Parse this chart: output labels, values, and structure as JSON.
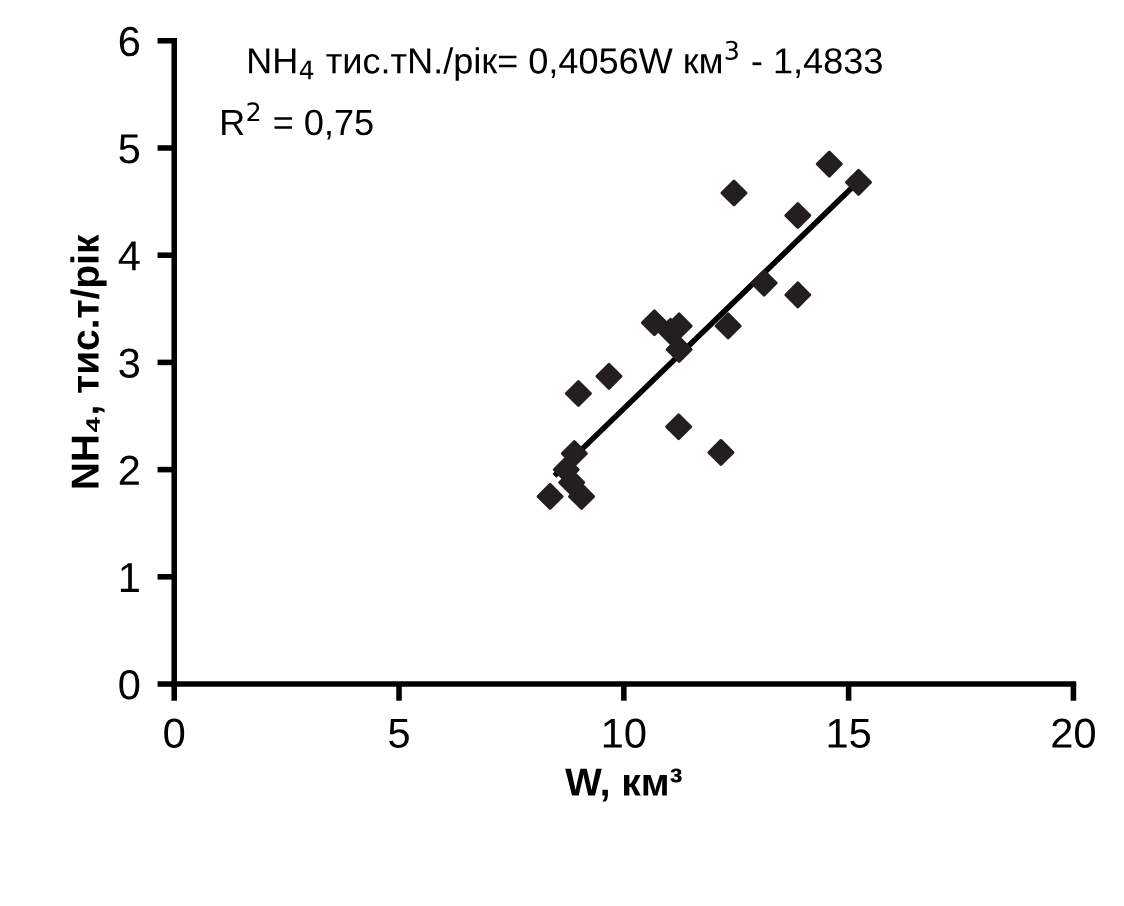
{
  "chart_data": {
    "type": "scatter",
    "xlabel": "W, км³",
    "ylabel": "NH₄, тис.т/рік",
    "annotations": [
      "NH$_{4}$ тис.тN./рік= 0,4056W км$^{3}$ - 1,4833",
      "R$^{2}$ = 0,75"
    ],
    "series": [
      {
        "color": "#231f20",
        "marker": "diamond",
        "x": [
          8.36,
          9.06,
          8.84,
          8.72,
          8.9,
          8.99,
          9.67,
          10.68,
          11.04,
          11.23,
          11.23,
          11.22,
          12.16,
          12.32,
          13.12,
          13.87,
          13.87,
          12.45,
          14.57,
          15.22
        ],
        "values": [
          1.75,
          1.75,
          1.88,
          2.0,
          2.15,
          2.71,
          2.87,
          3.37,
          3.29,
          3.34,
          3.12,
          2.4,
          2.16,
          3.34,
          3.74,
          3.63,
          4.37,
          4.58,
          4.85,
          4.68
        ]
      },
      {
        "type": "line",
        "color": "#000000",
        "marker": "none",
        "line_style": "solid",
        "x": [
          8.5,
          15.2
        ],
        "values": [
          1.96,
          4.68
        ]
      }
    ],
    "xlim": [
      0,
      20
    ],
    "ylim": [
      0,
      6
    ],
    "xticks": [
      0,
      5,
      10,
      15,
      20
    ],
    "yticks": [
      0,
      1,
      2,
      3,
      4,
      5,
      6
    ],
    "grid": false,
    "legend": false
  }
}
